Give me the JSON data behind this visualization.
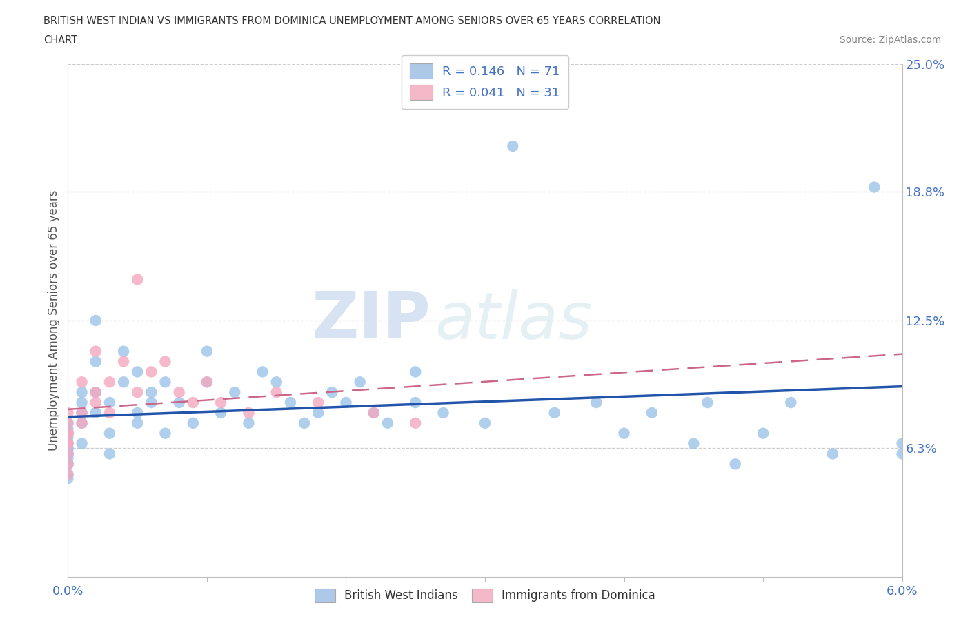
{
  "title_line1": "BRITISH WEST INDIAN VS IMMIGRANTS FROM DOMINICA UNEMPLOYMENT AMONG SENIORS OVER 65 YEARS CORRELATION",
  "title_line2": "CHART",
  "source_text": "Source: ZipAtlas.com",
  "ylabel": "Unemployment Among Seniors over 65 years",
  "xlim": [
    0.0,
    6.0
  ],
  "ylim": [
    0.0,
    25.0
  ],
  "x_tick_labels": [
    "0.0%",
    "",
    "",
    "",
    "",
    "",
    "6.0%"
  ],
  "y_tick_labels_right": [
    "",
    "6.3%",
    "12.5%",
    "18.8%",
    "25.0%"
  ],
  "y_ticks_right": [
    0.0,
    6.3,
    12.5,
    18.8,
    25.0
  ],
  "legend_entries": [
    {
      "label": "R = 0.146   N = 71",
      "color": "#adc8e8"
    },
    {
      "label": "R = 0.041   N = 31",
      "color": "#f4b8c8"
    }
  ],
  "legend_bottom": [
    {
      "label": "British West Indians",
      "color": "#adc8e8"
    },
    {
      "label": "Immigrants from Dominica",
      "color": "#f4b8c8"
    }
  ],
  "series1_color": "#9dc4e8",
  "series2_color": "#f4a8c0",
  "trend1_color": "#2255aa",
  "trend2_color": "#cc6688",
  "watermark_zip": "ZIP",
  "watermark_atlas": "atlas",
  "N1": 71,
  "N2": 31,
  "s1x": [
    0.0,
    0.0,
    0.0,
    0.0,
    0.0,
    0.0,
    0.0,
    0.0,
    0.0,
    0.0,
    0.0,
    0.0,
    0.0,
    0.0,
    0.0,
    0.1,
    0.1,
    0.1,
    0.1,
    0.1,
    0.2,
    0.2,
    0.2,
    0.2,
    0.3,
    0.3,
    0.3,
    0.4,
    0.4,
    0.5,
    0.5,
    0.5,
    0.6,
    0.6,
    0.7,
    0.7,
    0.8,
    0.9,
    1.0,
    1.0,
    1.1,
    1.2,
    1.3,
    1.4,
    1.5,
    1.6,
    1.7,
    1.8,
    1.9,
    2.0,
    2.1,
    2.2,
    2.3,
    2.5,
    2.5,
    2.7,
    3.0,
    3.2,
    3.5,
    3.8,
    4.0,
    4.2,
    4.5,
    4.6,
    4.8,
    5.0,
    5.2,
    5.5,
    5.8,
    6.0,
    6.0
  ],
  "s1y": [
    6.0,
    6.5,
    7.0,
    7.5,
    5.5,
    6.2,
    5.0,
    6.8,
    7.2,
    5.8,
    6.3,
    4.8,
    7.0,
    5.5,
    6.0,
    8.0,
    9.0,
    7.5,
    8.5,
    6.5,
    12.5,
    10.5,
    9.0,
    8.0,
    7.0,
    8.5,
    6.0,
    9.5,
    11.0,
    8.0,
    7.5,
    10.0,
    8.5,
    9.0,
    9.5,
    7.0,
    8.5,
    7.5,
    11.0,
    9.5,
    8.0,
    9.0,
    7.5,
    10.0,
    9.5,
    8.5,
    7.5,
    8.0,
    9.0,
    8.5,
    9.5,
    8.0,
    7.5,
    8.5,
    10.0,
    8.0,
    7.5,
    21.0,
    8.0,
    8.5,
    7.0,
    8.0,
    6.5,
    8.5,
    5.5,
    7.0,
    8.5,
    6.0,
    19.0,
    6.5,
    6.0
  ],
  "s2x": [
    0.0,
    0.0,
    0.0,
    0.0,
    0.0,
    0.0,
    0.0,
    0.0,
    0.0,
    0.1,
    0.1,
    0.1,
    0.2,
    0.2,
    0.2,
    0.3,
    0.3,
    0.4,
    0.5,
    0.5,
    0.6,
    0.7,
    0.8,
    0.9,
    1.0,
    1.1,
    1.3,
    1.5,
    1.8,
    2.2,
    2.5
  ],
  "s2y": [
    7.0,
    6.5,
    5.5,
    7.5,
    6.0,
    5.0,
    8.0,
    7.0,
    6.5,
    9.5,
    8.0,
    7.5,
    11.0,
    9.0,
    8.5,
    9.5,
    8.0,
    10.5,
    14.5,
    9.0,
    10.0,
    10.5,
    9.0,
    8.5,
    9.5,
    8.5,
    8.0,
    9.0,
    8.5,
    8.0,
    7.5
  ]
}
